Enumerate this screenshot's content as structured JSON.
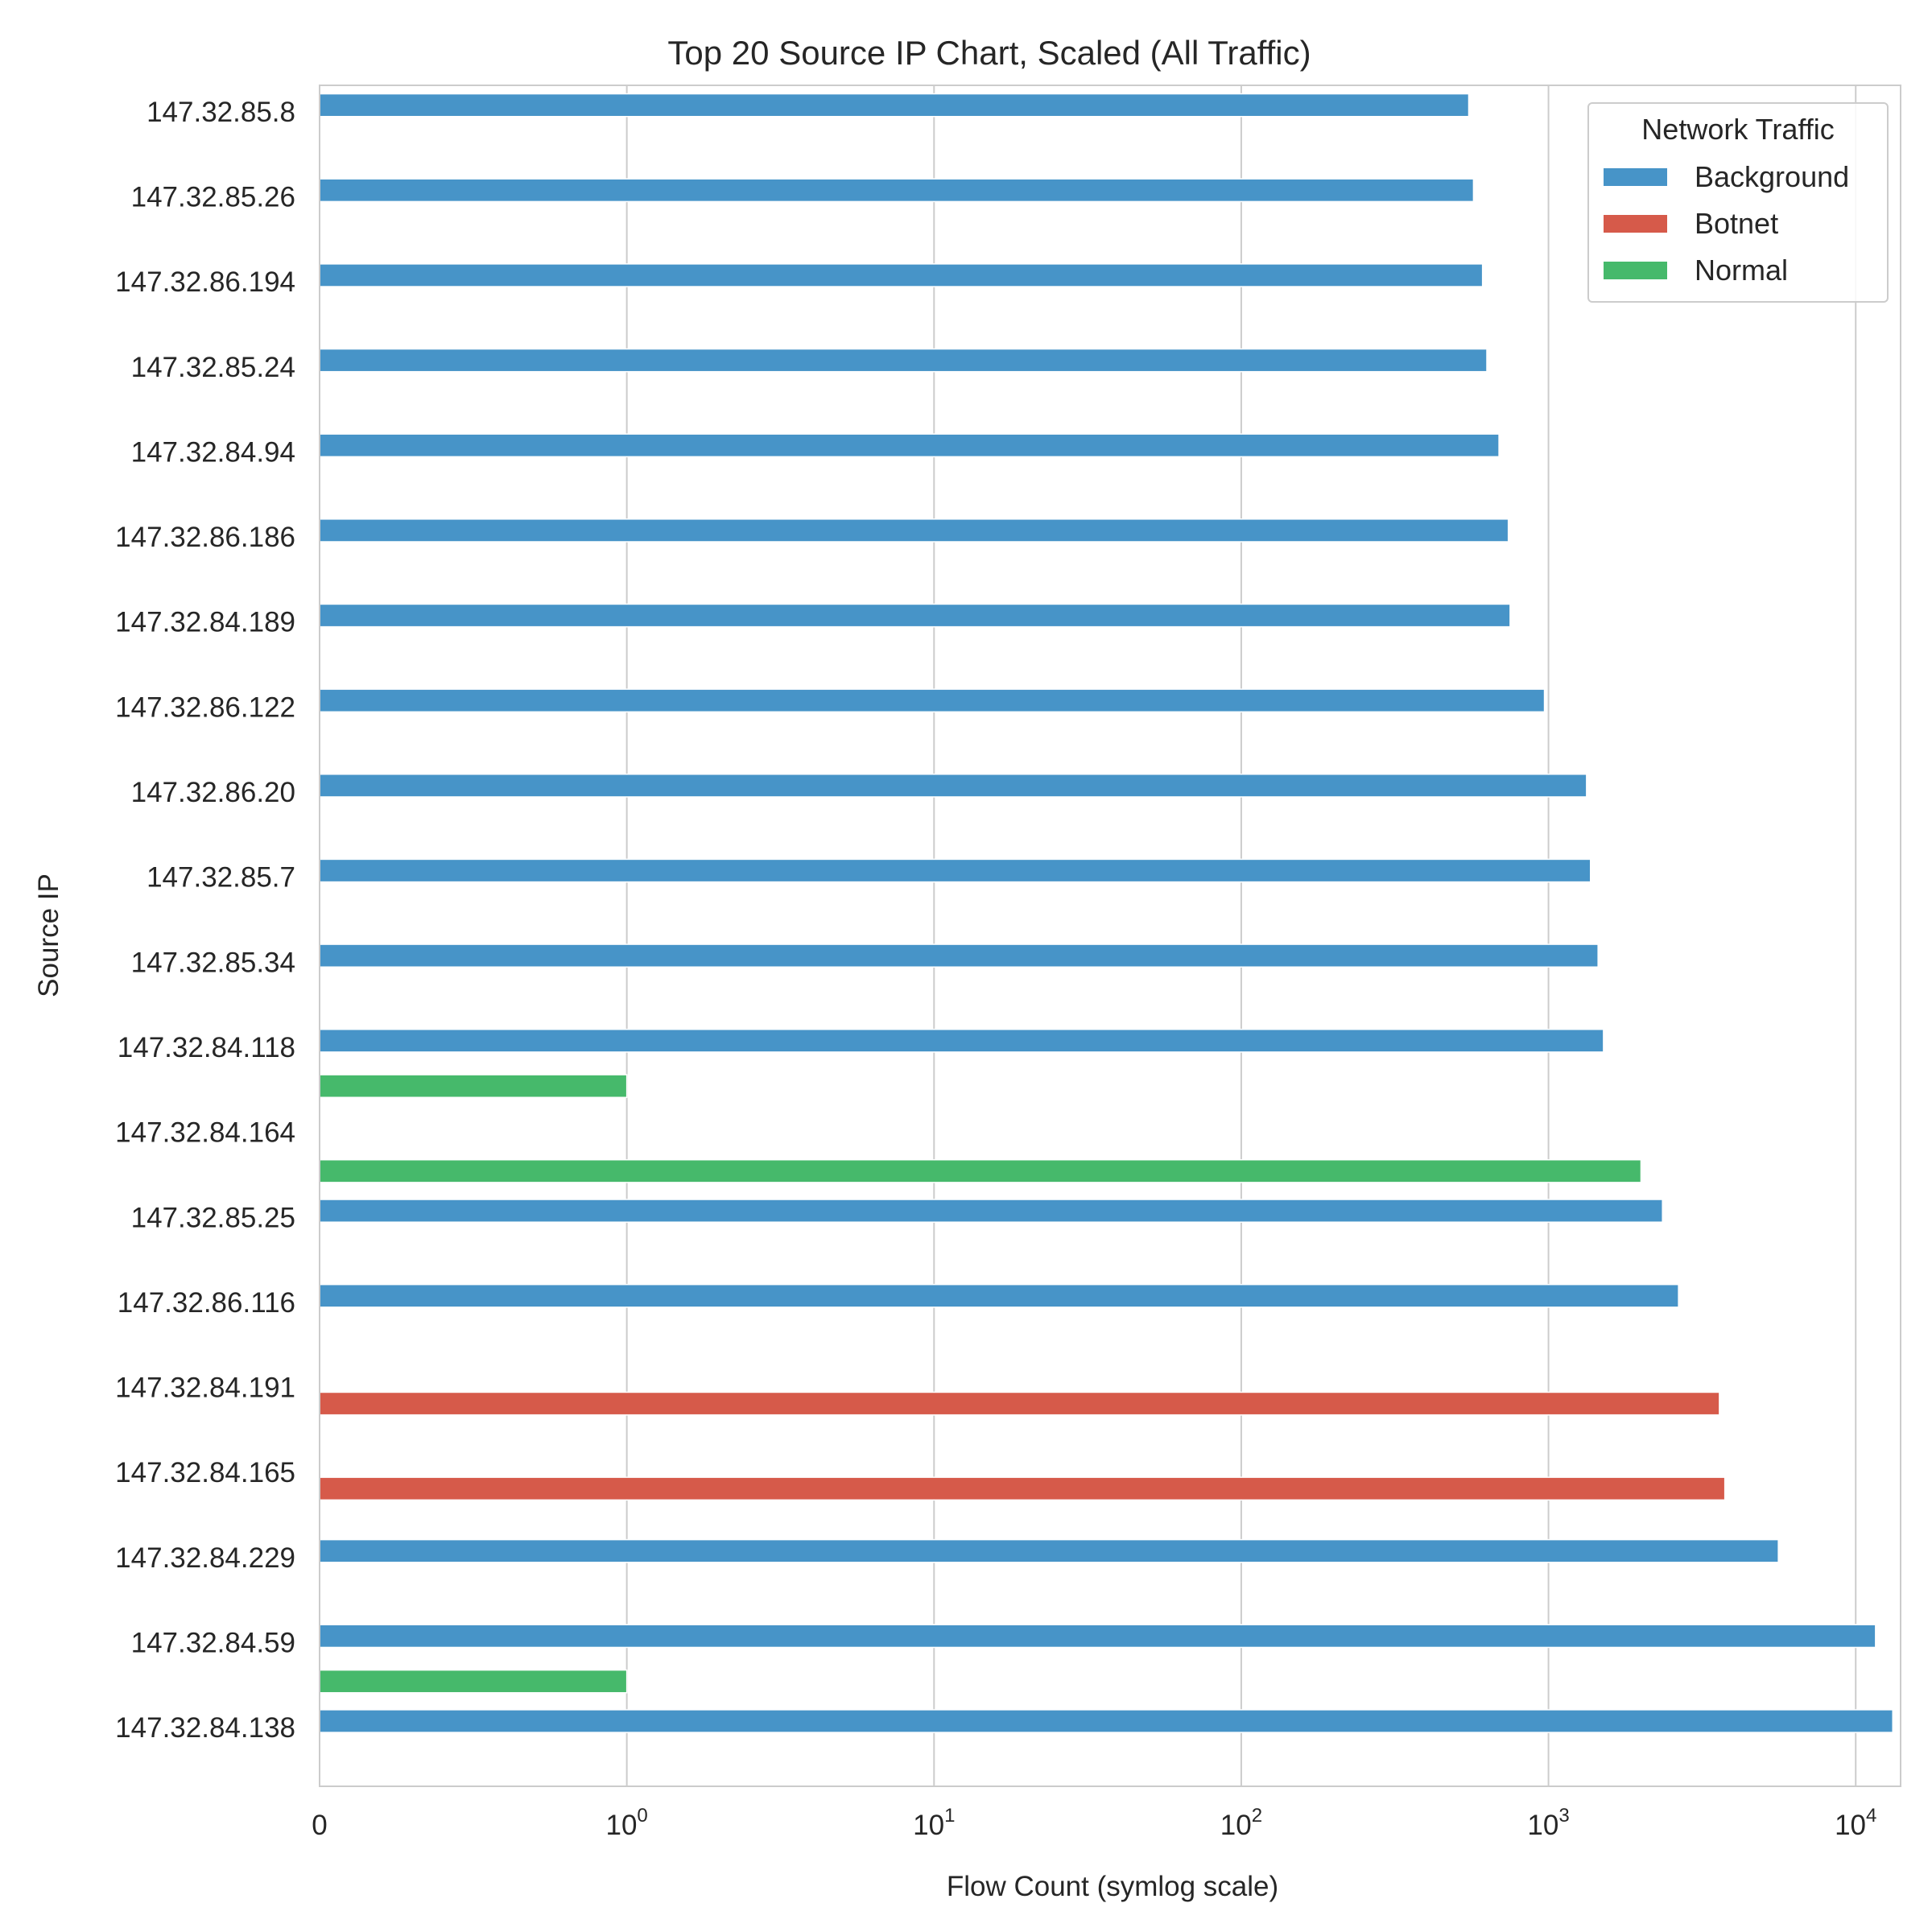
{
  "chart_data": {
    "type": "bar",
    "orientation": "horizontal",
    "title": "Top 20 Source IP Chart, Scaled (All Traffic)",
    "xlabel": "Flow Count (symlog scale)",
    "ylabel": "Source IP",
    "xscale": "symlog",
    "xlim": [
      0,
      14000
    ],
    "grid": "vertical",
    "x_ticks": [
      {
        "value": 0,
        "base": "0",
        "exp": ""
      },
      {
        "value": 1,
        "base": "10",
        "exp": "0"
      },
      {
        "value": 10,
        "base": "10",
        "exp": "1"
      },
      {
        "value": 100,
        "base": "10",
        "exp": "2"
      },
      {
        "value": 1000,
        "base": "10",
        "exp": "3"
      },
      {
        "value": 10000,
        "base": "10",
        "exp": "4"
      }
    ],
    "categories": [
      "147.32.85.8",
      "147.32.85.26",
      "147.32.86.194",
      "147.32.85.24",
      "147.32.84.94",
      "147.32.86.186",
      "147.32.84.189",
      "147.32.86.122",
      "147.32.86.20",
      "147.32.85.7",
      "147.32.85.34",
      "147.32.84.118",
      "147.32.84.164",
      "147.32.85.25",
      "147.32.86.116",
      "147.32.84.191",
      "147.32.84.165",
      "147.32.84.229",
      "147.32.84.59",
      "147.32.84.138"
    ],
    "series": [
      {
        "name": "Background",
        "color": "#4794c8",
        "values": [
          550,
          570,
          610,
          630,
          690,
          740,
          750,
          970,
          1330,
          1370,
          1450,
          1510,
          0,
          2350,
          2650,
          0,
          0,
          5600,
          11600,
          13200
        ]
      },
      {
        "name": "Botnet",
        "color": "#d65a4a",
        "values": [
          0,
          0,
          0,
          0,
          0,
          0,
          0,
          0,
          0,
          0,
          0,
          0,
          0,
          0,
          0,
          3600,
          3750,
          0,
          0,
          0
        ]
      },
      {
        "name": "Normal",
        "color": "#46b96b",
        "values": [
          0,
          0,
          0,
          0,
          0,
          0,
          0,
          0,
          0,
          0,
          0,
          1,
          2000,
          0,
          0,
          0,
          0,
          0,
          1,
          0
        ]
      }
    ],
    "legend": {
      "title": "Network Traffic",
      "position": "top-right"
    }
  }
}
